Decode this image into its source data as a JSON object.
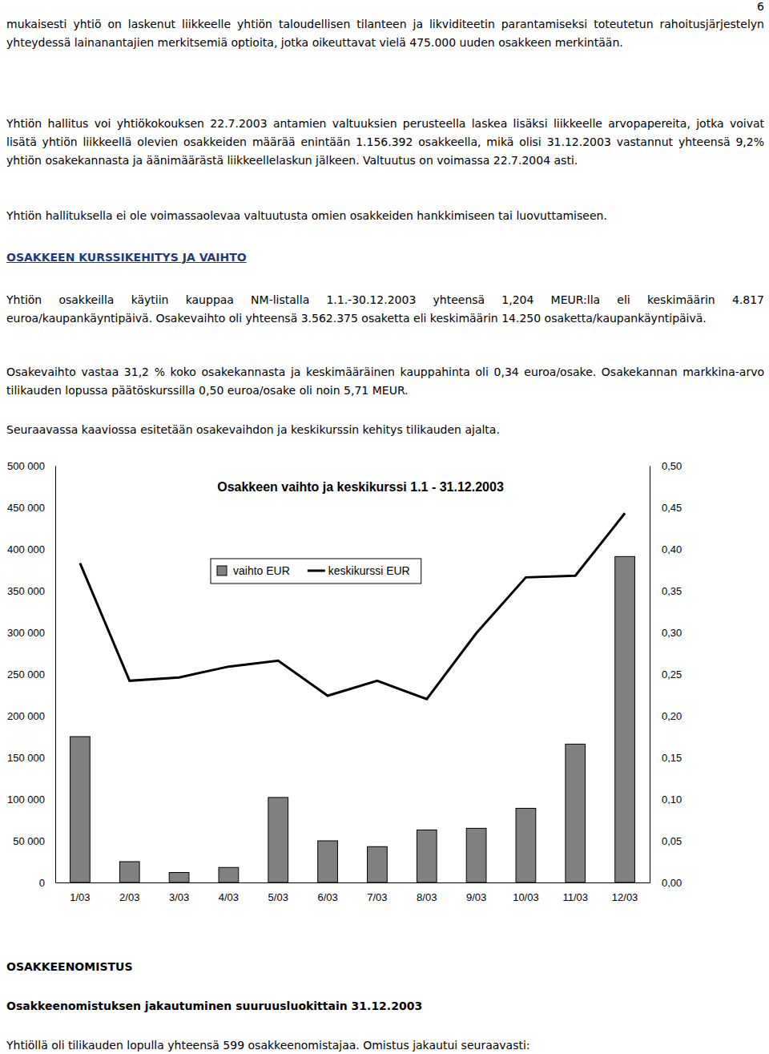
{
  "document": {
    "page_number": "6",
    "intro": [
      "mukaisesti yhtiö on laskenut liikkeelle yhtiön taloudellisen tilanteen ja likviditeetin parantamiseksi toteutetun rahoitusjärjestelyn yhteydessä lainanantajien merkitsemiä optioita, jotka oikeuttavat vielä 475.000 uuden osakkeen merkintään.",
      "Yhtiön hallitus voi yhtiökokouksen 22.7.2003 antamien valtuuksien perusteella laskea lisäksi liikkeelle arvopapereita, jotka voivat lisätä yhtiön liikkeellä olevien osakkeiden määrää enintään 1.156.392 osakkeella, mikä olisi 31.12.2003 vastannut yhteensä 9,2% yhtiön osakekannasta ja äänimäärästä liikkeellelaskun jälkeen. Valtuutus on voimassa 22.7.2004 asti.",
      "Yhtiön hallituksella ei ole voimassaolevaa valtuutusta omien osakkeiden hankkimiseen tai luovuttamiseen."
    ],
    "section1": {
      "heading": "OSAKKEEN KURSSIKEHITYS JA VAIHTO",
      "paragraphs": [
        "Yhtiön osakkeilla käytiin kauppaa NM-listalla 1.1.-30.12.2003 yhteensä 1,204 MEUR:lla eli keskimäärin 4.817 euroa/kaupankäyntipäivä. Osakevaihto oli yhteensä 3.562.375 osaketta eli keskimäärin 14.250 osaketta/kaupankäyntipäivä.",
        "Osakevaihto vastaa 31,2 % koko osakekannasta ja keskimääräinen kauppahinta oli 0,34 euroa/osake. Osakekannan markkina-arvo tilikauden lopussa päätöskurssilla 0,50 euroa/osake oli noin 5,71 MEUR.",
        "Seuraavassa kaaviossa esitetään osakevaihdon ja keskikurssin kehitys tilikauden ajalta."
      ]
    },
    "section2": {
      "heading": "OSAKKEENOMISTUS",
      "subheading": "Osakkeenomistuksen jakautuminen suuruusluokittain 31.12.2003",
      "paragraphs": [
        "Yhtiöllä oli tilikauden lopulla yhteensä 599 osakkeenomistajaa. Omistus jakautui seuraavasti:"
      ]
    }
  },
  "chart_data": {
    "type": "bar",
    "title": "Osakkeen vaihto ja keskikurssi 1.1 - 31.12.2003",
    "categories": [
      "1/03",
      "2/03",
      "3/03",
      "4/03",
      "5/03",
      "6/03",
      "7/03",
      "8/03",
      "9/03",
      "10/03",
      "11/03",
      "12/03"
    ],
    "series": [
      {
        "name": "vaihto EUR",
        "type": "bar",
        "color": "#808080",
        "values": [
          175000,
          25000,
          12000,
          18000,
          102000,
          50000,
          43000,
          63000,
          65000,
          89000,
          166000,
          391000
        ]
      },
      {
        "name": "keskikurssi EUR",
        "type": "line",
        "color": "#000000",
        "axis": "y2",
        "values": [
          0.383,
          0.242,
          0.246,
          0.259,
          0.266,
          0.224,
          0.242,
          0.22,
          0.299,
          0.366,
          0.368,
          0.443
        ]
      }
    ],
    "ylim": [
      0,
      500000
    ],
    "yticks": [
      0,
      {
        "value": 50000,
        "label": "50 000"
      },
      {
        "value": 100000,
        "label": "100 000"
      },
      {
        "value": 150000,
        "label": "150 000"
      },
      {
        "value": 200000,
        "label": "200 000"
      },
      {
        "value": 250000,
        "label": "250 000"
      },
      {
        "value": 300000,
        "label": "300 000"
      },
      {
        "value": 350000,
        "label": "350 000"
      },
      {
        "value": 400000,
        "label": "400 000"
      },
      {
        "value": 450000,
        "label": "450 000"
      },
      {
        "value": 500000,
        "label": "500 000"
      }
    ],
    "y2lim": [
      0,
      0.5
    ],
    "y2ticks": [
      {
        "value": 0,
        "label": "0,00"
      },
      {
        "value": 0.05,
        "label": "0,05"
      },
      {
        "value": 0.1,
        "label": "0,10"
      },
      {
        "value": 0.15,
        "label": "0,15"
      },
      {
        "value": 0.2,
        "label": "0,20"
      },
      {
        "value": 0.25,
        "label": "0,25"
      },
      {
        "value": 0.3,
        "label": "0,30"
      },
      {
        "value": 0.35,
        "label": "0,35"
      },
      {
        "value": 0.4,
        "label": "0,40"
      },
      {
        "value": 0.45,
        "label": "0,45"
      },
      {
        "value": 0.5,
        "label": "0,50"
      }
    ],
    "grid": false,
    "legend": "upper left"
  }
}
